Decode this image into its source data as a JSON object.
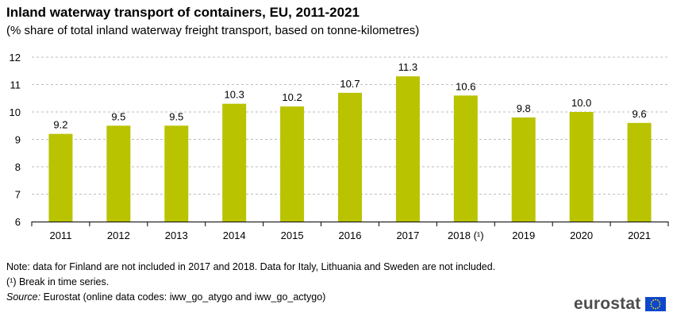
{
  "title": "Inland waterway transport of containers, EU, 2011-2021",
  "subtitle": "(% share of total inland waterway freight transport, based on tonne-kilometres)",
  "chart_data": {
    "type": "bar",
    "categories": [
      "2011",
      "2012",
      "2013",
      "2014",
      "2015",
      "2016",
      "2017",
      "2018 (¹)",
      "2019",
      "2020",
      "2021"
    ],
    "values": [
      9.2,
      9.5,
      9.5,
      10.3,
      10.2,
      10.7,
      11.3,
      10.6,
      9.8,
      10.0,
      9.6
    ],
    "value_labels": [
      "9.2",
      "9.5",
      "9.5",
      "10.3",
      "10.2",
      "10.7",
      "11.3",
      "10.6",
      "9.8",
      "10.0",
      "9.6"
    ],
    "ylim": [
      6,
      12
    ],
    "yticks": [
      "6",
      "7",
      "8",
      "9",
      "10",
      "11",
      "12"
    ],
    "grid": "horizontal dashed",
    "bar_color": "#b9c300",
    "xlabel": "",
    "ylabel": ""
  },
  "notes": {
    "note1": "Note: data for Finland are not included in 2017 and 2018. Data for Italy, Lithuania and Sweden are not included.",
    "note2": "(¹) Break in time series.",
    "source_label": "Source:",
    "source_text": " Eurostat (online data codes: iww_go_atygo and iww_go_actygo)"
  },
  "logo": {
    "text": "eurostat",
    "flag_color": "#0e47cb",
    "star_color": "#ffed00"
  }
}
